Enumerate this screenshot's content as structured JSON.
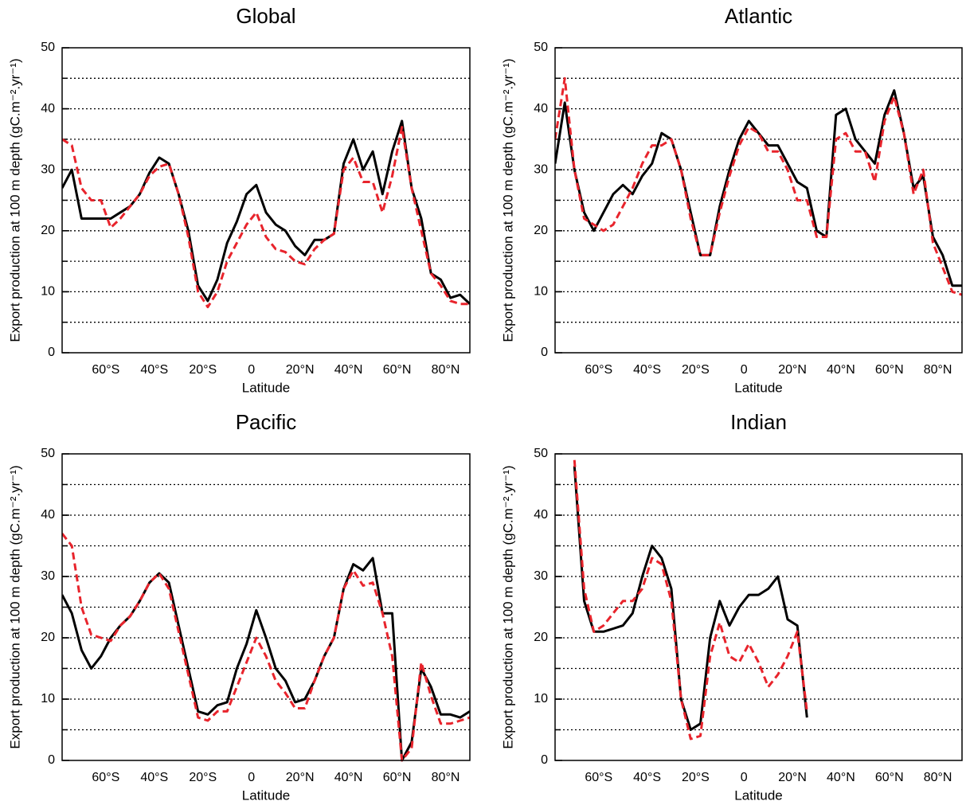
{
  "chart_data": [
    {
      "type": "line",
      "title": "Global",
      "x_label": "Latitude",
      "y_label": "Export production at 100 m depth (gC.m⁻².yr⁻¹)",
      "x": [
        -78,
        -74,
        -70,
        -66,
        -62,
        -58,
        -54,
        -50,
        -46,
        -42,
        -38,
        -34,
        -30,
        -26,
        -22,
        -18,
        -14,
        -10,
        -6,
        -2,
        2,
        6,
        10,
        14,
        18,
        22,
        26,
        30,
        34,
        38,
        42,
        46,
        50,
        54,
        58,
        62,
        66,
        70,
        74,
        78,
        82,
        86,
        90
      ],
      "xlim": [
        -78,
        90
      ],
      "xticks": [
        {
          "value": -60,
          "label": "60°S"
        },
        {
          "value": -40,
          "label": "40°S"
        },
        {
          "value": -20,
          "label": "20°S"
        },
        0,
        {
          "value": 20,
          "label": "20°N"
        },
        {
          "value": 40,
          "label": "40°N"
        },
        {
          "value": 60,
          "label": "60°N"
        },
        {
          "value": 80,
          "label": "80°N"
        }
      ],
      "ylim": [
        0,
        50
      ],
      "yticks": [
        0,
        10,
        20,
        30,
        40,
        50
      ],
      "grid_lines": [
        5,
        10,
        15,
        20,
        25,
        30,
        35,
        40,
        45
      ],
      "series": [
        {
          "color": "#000000",
          "line_style": "solid",
          "values": [
            27,
            30,
            22,
            22,
            22,
            22,
            23,
            24,
            26,
            29.5,
            32,
            31,
            26,
            20,
            11,
            8.5,
            12,
            18,
            21.5,
            26,
            27.5,
            23,
            21,
            20,
            17.5,
            16,
            18.5,
            18.5,
            19.5,
            31,
            35,
            30,
            33,
            26,
            33,
            38,
            27,
            22,
            13,
            12,
            9,
            9.5,
            8
          ]
        },
        {
          "color": "#e8242c",
          "line_style": "dashed",
          "values": [
            35,
            34,
            27,
            25,
            25,
            20.5,
            22,
            24,
            26,
            29,
            30.5,
            31,
            26,
            19,
            10,
            7.5,
            10,
            15,
            18,
            21,
            23,
            19,
            17,
            16.5,
            15,
            14.5,
            17,
            18.5,
            19.5,
            30,
            32,
            28,
            28,
            23,
            29,
            37,
            27,
            20,
            13,
            11,
            8.5,
            8,
            8
          ]
        }
      ]
    },
    {
      "type": "line",
      "title": "Atlantic",
      "x_label": "Latitude",
      "y_label": "Export production at 100 m depth (gC.m⁻².yr⁻¹)",
      "x": [
        -78,
        -74,
        -70,
        -66,
        -62,
        -58,
        -54,
        -50,
        -46,
        -42,
        -38,
        -34,
        -30,
        -26,
        -22,
        -18,
        -14,
        -10,
        -6,
        -2,
        2,
        6,
        10,
        14,
        18,
        22,
        26,
        30,
        34,
        38,
        42,
        46,
        50,
        54,
        58,
        62,
        66,
        70,
        74,
        78,
        82,
        86,
        90
      ],
      "xlim": [
        -78,
        90
      ],
      "xticks": [
        {
          "value": -60,
          "label": "60°S"
        },
        {
          "value": -40,
          "label": "40°S"
        },
        {
          "value": -20,
          "label": "20°S"
        },
        0,
        {
          "value": 20,
          "label": "20°N"
        },
        {
          "value": 40,
          "label": "40°N"
        },
        {
          "value": 60,
          "label": "60°N"
        },
        {
          "value": 80,
          "label": "80°N"
        }
      ],
      "ylim": [
        0,
        50
      ],
      "yticks": [
        0,
        10,
        20,
        30,
        40,
        50
      ],
      "grid_lines": [
        5,
        10,
        15,
        20,
        25,
        30,
        35,
        40,
        45
      ],
      "series": [
        {
          "color": "#000000",
          "line_style": "solid",
          "values": [
            31,
            41,
            30,
            23,
            20,
            23,
            26,
            27.5,
            26,
            29,
            31,
            36,
            35,
            30,
            23,
            16,
            16,
            24,
            30,
            35,
            38,
            36,
            34,
            34,
            31,
            28,
            27,
            20,
            19,
            39,
            40,
            35,
            33,
            31,
            39,
            43,
            36,
            27,
            29,
            19,
            16,
            11,
            11
          ]
        },
        {
          "color": "#e8242c",
          "line_style": "dashed",
          "values": [
            35,
            45,
            30,
            22,
            21,
            20,
            21,
            24,
            27,
            31,
            34,
            34,
            35,
            30,
            22,
            16,
            16,
            23,
            29,
            34,
            37,
            36,
            33,
            33,
            30,
            25,
            25,
            19,
            19,
            35,
            36,
            33,
            33,
            28,
            38,
            42,
            36,
            26,
            30,
            18,
            14,
            10,
            9.5
          ]
        }
      ]
    },
    {
      "type": "line",
      "title": "Pacific",
      "x_label": "Latitude",
      "y_label": "Export production at 100 m depth (gC.m⁻².yr⁻¹)",
      "x": [
        -78,
        -74,
        -70,
        -66,
        -62,
        -58,
        -54,
        -50,
        -46,
        -42,
        -38,
        -34,
        -30,
        -26,
        -22,
        -18,
        -14,
        -10,
        -6,
        -2,
        2,
        6,
        10,
        14,
        18,
        22,
        26,
        30,
        34,
        38,
        42,
        46,
        50,
        54,
        58,
        62,
        66,
        70,
        74,
        78,
        82,
        86,
        90
      ],
      "xlim": [
        -78,
        90
      ],
      "xticks": [
        {
          "value": -60,
          "label": "60°S"
        },
        {
          "value": -40,
          "label": "40°S"
        },
        {
          "value": -20,
          "label": "20°S"
        },
        0,
        {
          "value": 20,
          "label": "20°N"
        },
        {
          "value": 40,
          "label": "40°N"
        },
        {
          "value": 60,
          "label": "60°N"
        },
        {
          "value": 80,
          "label": "80°N"
        }
      ],
      "ylim": [
        0,
        50
      ],
      "yticks": [
        0,
        10,
        20,
        30,
        40,
        50
      ],
      "grid_lines": [
        5,
        10,
        15,
        20,
        25,
        30,
        35,
        40,
        45
      ],
      "series": [
        {
          "color": "#000000",
          "line_style": "solid",
          "values": [
            27,
            24,
            18,
            15,
            17,
            20,
            22,
            23.5,
            26,
            29,
            30.5,
            29,
            22,
            15,
            8,
            7.5,
            9,
            9.5,
            15,
            19,
            24.5,
            20,
            15,
            13,
            9.5,
            10,
            13,
            17,
            20,
            28,
            32,
            31,
            33,
            24,
            24,
            0,
            3,
            15,
            12,
            7.5,
            7.5,
            7,
            8
          ]
        },
        {
          "color": "#e8242c",
          "line_style": "dashed",
          "values": [
            37,
            35,
            25,
            20.5,
            20,
            19.5,
            22,
            23.5,
            26,
            29,
            30.5,
            28,
            21,
            14,
            7,
            6.5,
            8,
            8,
            12,
            16,
            20,
            17,
            13,
            11,
            8.5,
            8.5,
            13,
            17,
            20,
            28,
            31,
            28.5,
            29,
            24,
            17,
            0,
            2,
            16,
            10.5,
            6,
            6,
            6.5,
            7
          ]
        }
      ]
    },
    {
      "type": "line",
      "title": "Indian",
      "x_label": "Latitude",
      "y_label": "Export production at 100 m depth (gC.m⁻².yr⁻¹)",
      "x": [
        -78,
        -74,
        -70,
        -66,
        -62,
        -58,
        -54,
        -50,
        -46,
        -42,
        -38,
        -34,
        -30,
        -26,
        -22,
        -18,
        -14,
        -10,
        -6,
        -2,
        2,
        6,
        10,
        14,
        18,
        22,
        26,
        30,
        34,
        38,
        42,
        46,
        50,
        54,
        58,
        62,
        66,
        70,
        74,
        78,
        82,
        86,
        90
      ],
      "xlim": [
        -78,
        90
      ],
      "xticks": [
        {
          "value": -60,
          "label": "60°S"
        },
        {
          "value": -40,
          "label": "40°S"
        },
        {
          "value": -20,
          "label": "20°S"
        },
        0,
        {
          "value": 20,
          "label": "20°N"
        },
        {
          "value": 40,
          "label": "40°N"
        },
        {
          "value": 60,
          "label": "60°N"
        },
        {
          "value": 80,
          "label": "80°N"
        }
      ],
      "ylim": [
        0,
        50
      ],
      "yticks": [
        0,
        10,
        20,
        30,
        40,
        50
      ],
      "grid_lines": [
        5,
        10,
        15,
        20,
        25,
        30,
        35,
        40,
        45
      ],
      "series": [
        {
          "color": "#000000",
          "line_style": "solid",
          "values": [
            null,
            null,
            48,
            26,
            21,
            21,
            21.5,
            22,
            24,
            30,
            35,
            33,
            28,
            10,
            5,
            6,
            20,
            26,
            22,
            25,
            27,
            27,
            28,
            30,
            23,
            22,
            7,
            null,
            null,
            null,
            null,
            null,
            null,
            null,
            null,
            null,
            null,
            null,
            null,
            null,
            null,
            null,
            null
          ]
        },
        {
          "color": "#e8242c",
          "line_style": "dashed",
          "values": [
            null,
            null,
            49,
            28,
            21,
            22,
            24,
            26,
            26,
            28,
            33,
            32,
            26,
            10,
            3.5,
            4,
            17,
            22.5,
            17,
            16,
            19,
            16,
            12,
            14,
            17,
            21,
            8,
            null,
            null,
            null,
            null,
            null,
            null,
            null,
            null,
            null,
            null,
            null,
            null,
            null,
            null,
            null,
            null
          ]
        }
      ]
    }
  ]
}
